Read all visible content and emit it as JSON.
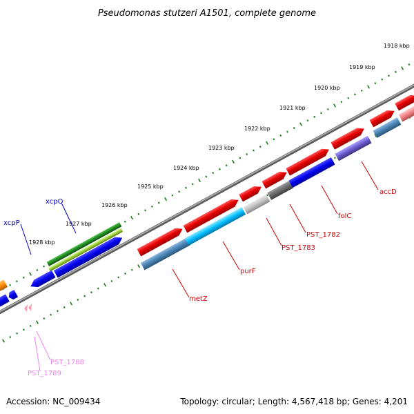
{
  "title": "Pseudomonas stutzeri A1501, complete genome",
  "footer": {
    "accession": "Accession: NC_009434",
    "summary": "Topology: circular; Length: 4,567,418 bp; Genes: 4,201"
  },
  "colors": {
    "forward_cds": "#e60000",
    "reverse_cds": "#4682b4",
    "backbone": "#808080",
    "tick": "#1a7a1a",
    "label_red": "#cc0000",
    "label_blue": "#0000cc",
    "label_pink": "#ee82ee"
  },
  "scale": {
    "unit": "kbp",
    "labels": [
      "1918 kbp",
      "1919 kbp",
      "1920 kbp",
      "1921 kbp",
      "1922 kbp",
      "1923 kbp",
      "1924 kbp",
      "1925 kbp",
      "1926 kbp",
      "1927 kbp",
      "1928 kbp"
    ]
  },
  "gene_labels": [
    {
      "name": "accD",
      "color": "red"
    },
    {
      "name": "folC",
      "color": "red"
    },
    {
      "name": "PST_1782",
      "color": "red"
    },
    {
      "name": "PST_1783",
      "color": "red"
    },
    {
      "name": "purF",
      "color": "red"
    },
    {
      "name": "metZ",
      "color": "red"
    },
    {
      "name": "xcpQ",
      "color": "blue"
    },
    {
      "name": "xcpP",
      "color": "blue"
    },
    {
      "name": "PST_1788",
      "color": "pink"
    },
    {
      "name": "PST_1789",
      "color": "pink"
    }
  ]
}
